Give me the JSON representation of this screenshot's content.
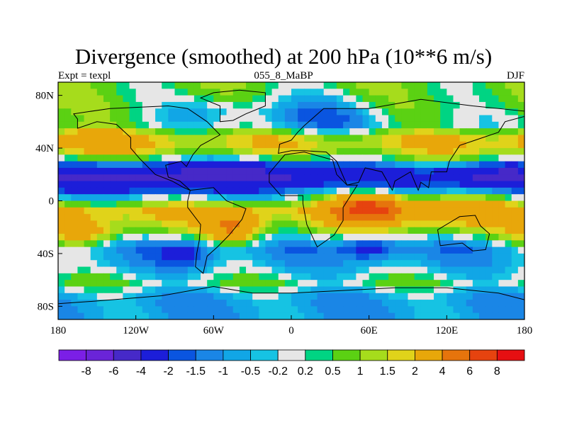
{
  "title": "Divergence (smoothed) at 200 hPa (10**6 m/s)",
  "subtitle_left": "Expt = texpl",
  "subtitle_center": "055_8_MaBP",
  "subtitle_right": "DJF",
  "x_ticks": [
    "180",
    "120W",
    "60W",
    "0",
    "60E",
    "120E",
    "180"
  ],
  "y_ticks": [
    "80N",
    "40N",
    "0",
    "40S",
    "80S"
  ],
  "colorbar": {
    "colors": [
      "#7b1fe6",
      "#6a24d8",
      "#4629c8",
      "#1c1ed9",
      "#0a55e0",
      "#1a86e6",
      "#11a6e6",
      "#16c3e3",
      "#e6e6e6",
      "#00d483",
      "#5bd113",
      "#a6dc1c",
      "#e0d31a",
      "#e8a70a",
      "#e6740c",
      "#e6430f",
      "#e60f12"
    ],
    "labels": [
      "-8",
      "-6",
      "-4",
      "-2",
      "-1.5",
      "-1",
      "-0.5",
      "-0.2",
      "0.2",
      "0.5",
      "1",
      "1.5",
      "2",
      "4",
      "6",
      "8"
    ]
  },
  "field_bands": [
    {
      "lat": 72,
      "level": 0.7
    },
    {
      "lat": 58,
      "level": 0.2
    },
    {
      "lat": 46,
      "level": 2.0
    },
    {
      "lat": 34,
      "level": 1.4
    },
    {
      "lat": 18,
      "level": -2.0
    },
    {
      "lat": 8,
      "level": -1.2
    },
    {
      "lat": -8,
      "level": 2.2
    },
    {
      "lat": -22,
      "level": 1.0
    },
    {
      "lat": -36,
      "level": -1.1
    },
    {
      "lat": -50,
      "level": -0.6
    },
    {
      "lat": -62,
      "level": 0.4
    },
    {
      "lat": -74,
      "level": -0.9
    }
  ],
  "field_anomalies": [
    {
      "lon": -110,
      "lat": 20,
      "rlon": 60,
      "rlat": 12,
      "amp": -3.0
    },
    {
      "lon": 0,
      "lat": 22,
      "rlon": 70,
      "rlat": 10,
      "amp": -3.0
    },
    {
      "lon": 150,
      "lat": 20,
      "rlon": 40,
      "rlat": 10,
      "amp": -3.0
    },
    {
      "lon": 60,
      "lat": -5,
      "rlon": 25,
      "rlat": 12,
      "amp": 5.5
    },
    {
      "lon": -45,
      "lat": -20,
      "rlon": 20,
      "rlat": 12,
      "amp": 3.0
    },
    {
      "lon": 120,
      "lat": -5,
      "rlon": 40,
      "rlat": 15,
      "amp": 1.5
    },
    {
      "lon": -160,
      "lat": 45,
      "rlon": 35,
      "rlat": 12,
      "amp": 1.2
    },
    {
      "lon": -160,
      "lat": -25,
      "rlon": 30,
      "rlat": 12,
      "amp": 1.8
    },
    {
      "lon": 20,
      "lat": 65,
      "rlon": 50,
      "rlat": 15,
      "amp": -1.8
    },
    {
      "lon": -60,
      "lat": 70,
      "rlon": 40,
      "rlat": 10,
      "amp": -1.0
    },
    {
      "lon": 60,
      "lat": -35,
      "rlon": 20,
      "rlat": 10,
      "amp": -2.0
    },
    {
      "lon": -80,
      "lat": -40,
      "rlon": 20,
      "rlat": 10,
      "amp": -1.5
    }
  ],
  "continents": [
    {
      "name": "North America",
      "points": [
        [
          -168,
          66
        ],
        [
          -140,
          70
        ],
        [
          -95,
          72
        ],
        [
          -80,
          70
        ],
        [
          -65,
          60
        ],
        [
          -55,
          50
        ],
        [
          -70,
          42
        ],
        [
          -76,
          35
        ],
        [
          -81,
          26
        ],
        [
          -85,
          30
        ],
        [
          -97,
          27
        ],
        [
          -95,
          18
        ],
        [
          -86,
          15
        ],
        [
          -78,
          8
        ],
        [
          -83,
          10
        ],
        [
          -92,
          15
        ],
        [
          -105,
          20
        ],
        [
          -117,
          32
        ],
        [
          -124,
          40
        ],
        [
          -124,
          48
        ],
        [
          -135,
          58
        ],
        [
          -150,
          60
        ],
        [
          -165,
          55
        ],
        [
          -165,
          62
        ]
      ]
    },
    {
      "name": "South America",
      "points": [
        [
          -78,
          8
        ],
        [
          -60,
          10
        ],
        [
          -50,
          0
        ],
        [
          -35,
          -6
        ],
        [
          -38,
          -14
        ],
        [
          -48,
          -26
        ],
        [
          -57,
          -35
        ],
        [
          -65,
          -42
        ],
        [
          -68,
          -55
        ],
        [
          -74,
          -50
        ],
        [
          -73,
          -40
        ],
        [
          -71,
          -30
        ],
        [
          -70,
          -18
        ],
        [
          -80,
          -5
        ],
        [
          -80,
          0
        ]
      ]
    },
    {
      "name": "Eurasia",
      "points": [
        [
          -10,
          36
        ],
        [
          -9,
          43
        ],
        [
          0,
          46
        ],
        [
          5,
          52
        ],
        [
          10,
          57
        ],
        [
          25,
          70
        ],
        [
          60,
          70
        ],
        [
          100,
          77
        ],
        [
          140,
          72
        ],
        [
          180,
          68
        ],
        [
          180,
          64
        ],
        [
          165,
          60
        ],
        [
          160,
          52
        ],
        [
          142,
          46
        ],
        [
          130,
          42
        ],
        [
          122,
          30
        ],
        [
          120,
          22
        ],
        [
          108,
          22
        ],
        [
          106,
          10
        ],
        [
          100,
          14
        ],
        [
          98,
          8
        ],
        [
          92,
          22
        ],
        [
          80,
          15
        ],
        [
          78,
          8
        ],
        [
          70,
          22
        ],
        [
          57,
          25
        ],
        [
          52,
          14
        ],
        [
          43,
          12
        ],
        [
          35,
          30
        ],
        [
          27,
          37
        ],
        [
          10,
          38
        ],
        [
          0,
          38
        ]
      ]
    },
    {
      "name": "Africa",
      "points": [
        [
          -17,
          21
        ],
        [
          -5,
          35
        ],
        [
          10,
          37
        ],
        [
          32,
          31
        ],
        [
          35,
          20
        ],
        [
          43,
          12
        ],
        [
          51,
          12
        ],
        [
          40,
          -5
        ],
        [
          40,
          -15
        ],
        [
          33,
          -26
        ],
        [
          20,
          -35
        ],
        [
          12,
          -18
        ],
        [
          9,
          -2
        ],
        [
          9,
          4
        ],
        [
          -8,
          4
        ],
        [
          -17,
          14
        ]
      ]
    },
    {
      "name": "Australia",
      "points": [
        [
          113,
          -22
        ],
        [
          130,
          -12
        ],
        [
          142,
          -11
        ],
        [
          146,
          -19
        ],
        [
          153,
          -25
        ],
        [
          150,
          -37
        ],
        [
          140,
          -38
        ],
        [
          132,
          -32
        ],
        [
          115,
          -34
        ]
      ]
    },
    {
      "name": "Antarctica",
      "points": [
        [
          -180,
          -78
        ],
        [
          -150,
          -76
        ],
        [
          -100,
          -72
        ],
        [
          -60,
          -65
        ],
        [
          -30,
          -70
        ],
        [
          0,
          -70
        ],
        [
          40,
          -68
        ],
        [
          80,
          -66
        ],
        [
          120,
          -66
        ],
        [
          160,
          -70
        ],
        [
          180,
          -75
        ],
        [
          180,
          -90
        ],
        [
          -180,
          -90
        ]
      ]
    },
    {
      "name": "Greenland",
      "points": [
        [
          -55,
          60
        ],
        [
          -45,
          61
        ],
        [
          -35,
          66
        ],
        [
          -20,
          72
        ],
        [
          -20,
          82
        ],
        [
          -40,
          84
        ],
        [
          -60,
          82
        ],
        [
          -70,
          78
        ],
        [
          -55,
          72
        ]
      ]
    }
  ]
}
